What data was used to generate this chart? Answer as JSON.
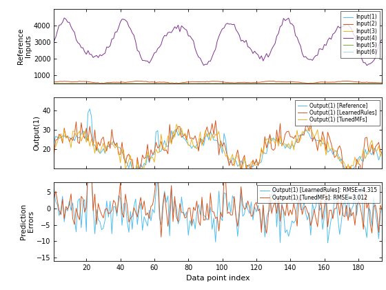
{
  "n_points": 194,
  "subplot1": {
    "ylabel": "Reference\nInputs",
    "ylim": [
      500,
      5000
    ],
    "yticks": [
      1000,
      2000,
      3000,
      4000
    ],
    "line_colors": [
      "#4DBEEE",
      "#D95319",
      "#EDB120",
      "#7E2F8E",
      "#77AC30",
      "#A8D8EA"
    ],
    "legend_labels": [
      "Input(1)",
      "Input(2)",
      "Input(3)",
      "Input(4)",
      "Input(5)",
      "Input(6)"
    ]
  },
  "subplot2": {
    "ylabel": "Output(1)",
    "ylim": [
      10,
      47
    ],
    "yticks": [
      20,
      30,
      40
    ],
    "line_colors": [
      "#4DBEEE",
      "#D95319",
      "#EDB120"
    ],
    "legend_labels": [
      "Output(1) [Reference]",
      "Output(1) [LearnedRules]",
      "Output(1) [TunedMFs]"
    ]
  },
  "subplot3": {
    "ylabel": "Prediction\nErrors",
    "ylim": [
      -16,
      8
    ],
    "yticks": [
      -15,
      -10,
      -5,
      0,
      5
    ],
    "line_colors": [
      "#4DBEEE",
      "#D95319"
    ],
    "legend_labels": [
      "Output(1) [LearnedRules]: RMSE=4.315",
      "Output(1) [TunedMFs]: RMSE=3.012"
    ]
  },
  "xlabel": "Data point index",
  "xlim": [
    1,
    194
  ],
  "xticks": [
    20,
    40,
    60,
    80,
    100,
    120,
    140,
    160,
    180
  ],
  "seed": 42
}
